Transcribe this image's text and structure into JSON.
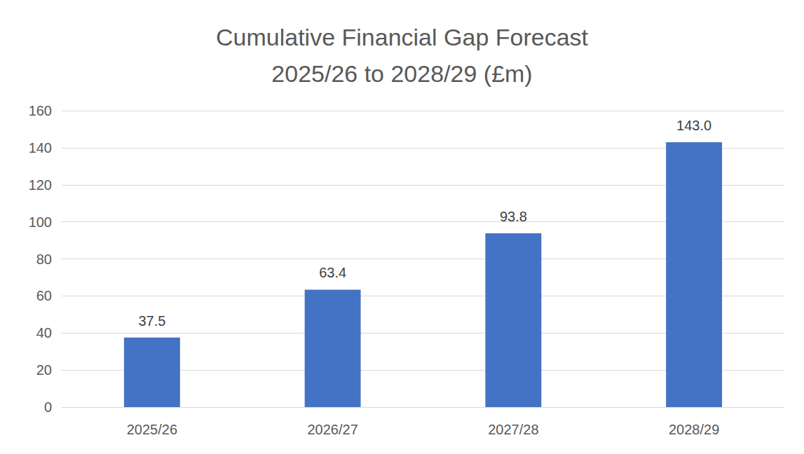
{
  "chart_data": {
    "type": "bar",
    "title": "Cumulative Financial Gap Forecast\n2025/26 to 2028/29 (£m)",
    "categories": [
      "2025/26",
      "2026/27",
      "2027/28",
      "2028/29"
    ],
    "values": [
      37.5,
      63.4,
      93.8,
      143.0
    ],
    "value_labels": [
      "37.5",
      "63.4",
      "93.8",
      "143.0"
    ],
    "color": "#4472c4",
    "ylim": [
      0,
      160
    ],
    "yticks": [
      0,
      20,
      40,
      60,
      80,
      100,
      120,
      140,
      160
    ],
    "grid": true,
    "data_labels": true
  }
}
